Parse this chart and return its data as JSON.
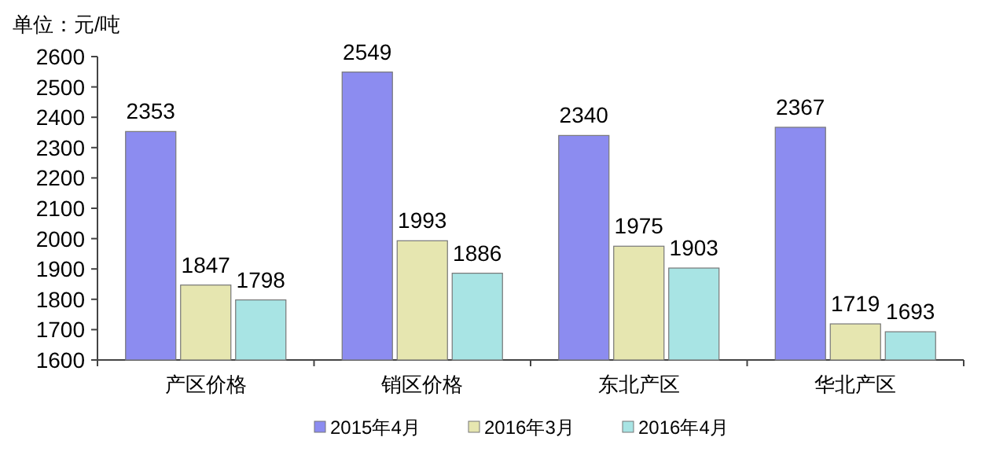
{
  "chart_data": {
    "type": "bar",
    "ylabel": "单位：元/吨",
    "categories": [
      "产区价格",
      "销区价格",
      "东北产区",
      "华北产区"
    ],
    "series": [
      {
        "name": "2015年4月",
        "color": "#8c8cf0",
        "values": [
          2353,
          2549,
          2340,
          2367
        ]
      },
      {
        "name": "2016年3月",
        "color": "#e6e6b0",
        "values": [
          1847,
          1993,
          1975,
          1719
        ]
      },
      {
        "name": "2016年4月",
        "color": "#a8e4e4",
        "values": [
          1798,
          1886,
          1903,
          1693
        ]
      }
    ],
    "ylim": [
      1600,
      2600
    ],
    "yticks": [
      1600,
      1700,
      1800,
      1900,
      2000,
      2100,
      2200,
      2300,
      2400,
      2500,
      2600
    ],
    "data_labels": true,
    "legend": "bottom",
    "grid": false
  }
}
